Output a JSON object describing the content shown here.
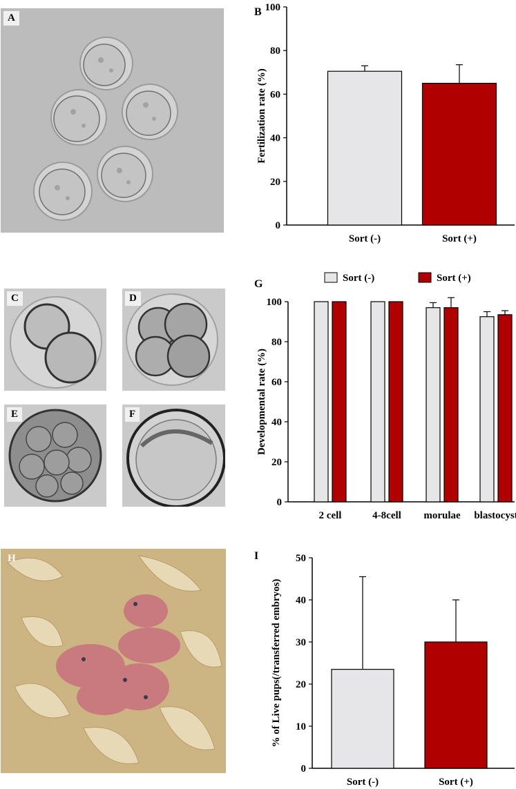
{
  "panels": {
    "A": {
      "label": "A"
    },
    "C": {
      "label": "C"
    },
    "D": {
      "label": "D"
    },
    "E": {
      "label": "E"
    },
    "F": {
      "label": "F"
    },
    "H": {
      "label": "H"
    }
  },
  "colors": {
    "sort_minus": "#e6e6e8",
    "sort_plus": "#b00000",
    "axis": "#000000"
  },
  "chart_data": [
    {
      "panel": "B",
      "type": "bar",
      "title": "",
      "categories": [
        "Sort (-)",
        "Sort (+)"
      ],
      "values": [
        70.5,
        65
      ],
      "errors": [
        2.5,
        8.5
      ],
      "xlabel": "",
      "ylabel": "Fertilization rate (%)",
      "ylim": [
        0,
        100
      ],
      "yticks": [
        0,
        20,
        40,
        60,
        80,
        100
      ],
      "grid": false
    },
    {
      "panel": "G",
      "type": "bar",
      "title": "",
      "categories": [
        "2 cell",
        "4-8cell",
        "morulae",
        "blastocyst"
      ],
      "series": [
        {
          "name": "Sort (-)",
          "values": [
            100,
            100,
            97,
            92.5
          ],
          "errors": [
            0,
            0,
            2.5,
            2.5
          ]
        },
        {
          "name": "Sort (+)",
          "values": [
            100,
            100,
            97,
            93.5
          ],
          "errors": [
            0,
            0,
            5,
            2
          ]
        }
      ],
      "xlabel": "",
      "ylabel": "Developmental rate (%)",
      "ylim": [
        0,
        100
      ],
      "yticks": [
        0,
        20,
        40,
        60,
        80,
        100
      ],
      "legend": "top",
      "grid": false
    },
    {
      "panel": "I",
      "type": "bar",
      "title": "",
      "categories": [
        "Sort (-)",
        "Sort (+)"
      ],
      "values": [
        23.5,
        30
      ],
      "errors": [
        22,
        10
      ],
      "xlabel": "",
      "ylabel": "% of Live pups(/transferred embryos)",
      "ylim": [
        0,
        50
      ],
      "yticks": [
        0,
        10,
        20,
        30,
        40,
        50
      ],
      "grid": false
    }
  ]
}
